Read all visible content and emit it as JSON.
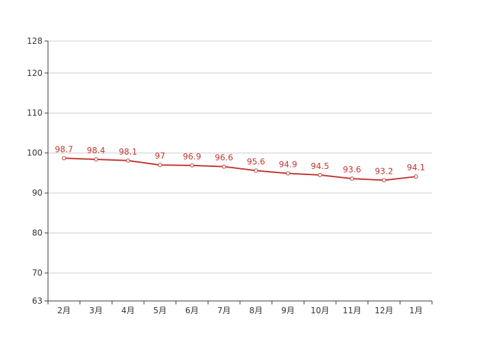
{
  "colors": {
    "series": "#c23531",
    "grid": "#cccccc",
    "axis": "#333333",
    "marker_fill": "#ffffff"
  },
  "chart_data": {
    "type": "line",
    "title": "",
    "xlabel": "",
    "ylabel": "",
    "categories": [
      "2月",
      "3月",
      "4月",
      "5月",
      "6月",
      "7月",
      "8月",
      "9月",
      "10月",
      "11月",
      "12月",
      "1月"
    ],
    "series": [
      {
        "values": [
          98.7,
          98.4,
          98.1,
          97,
          96.9,
          96.6,
          95.6,
          94.9,
          94.5,
          93.6,
          93.2,
          94.1
        ]
      }
    ],
    "data_labels": [
      "98.7",
      "98.4",
      "98.1",
      "97",
      "96.9",
      "96.6",
      "95.6",
      "94.9",
      "94.5",
      "93.6",
      "93.2",
      "94.1"
    ],
    "ylim": [
      63,
      128
    ],
    "yticks": [
      63,
      70,
      80,
      90,
      100,
      110,
      120,
      128
    ],
    "ytick_labels": [
      "63",
      "70",
      "80",
      "90",
      "100",
      "110",
      "120",
      "128"
    ],
    "grid": true,
    "legend": "none"
  }
}
